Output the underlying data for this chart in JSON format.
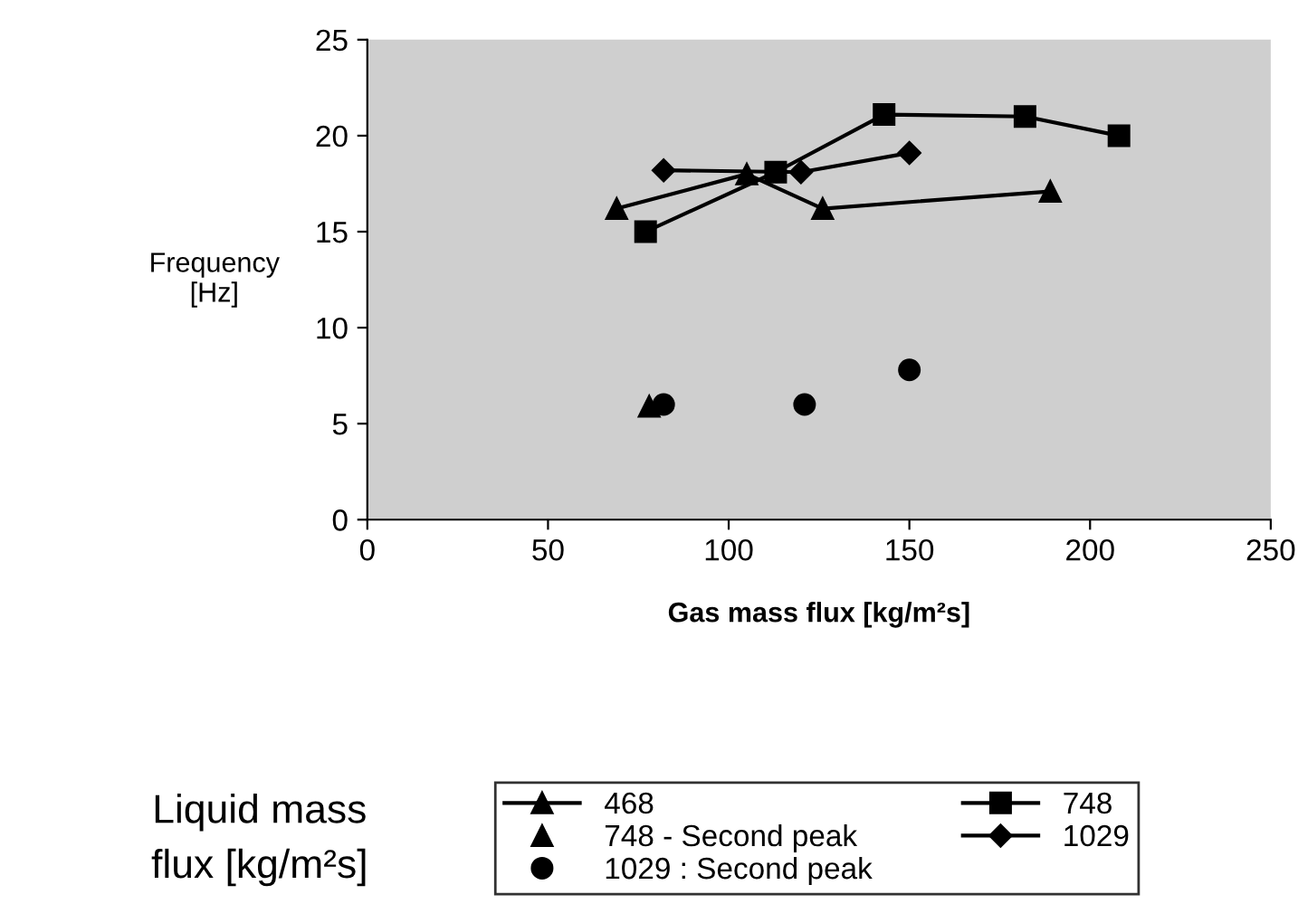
{
  "chart_data": {
    "type": "line",
    "xlabel": "Gas mass flux [kg/m²s]",
    "ylabel": "Frequency\n[Hz]",
    "legend_title": "Liquid mass\nflux [kg/m²s]",
    "xlim": [
      0,
      250
    ],
    "xticks": [
      0,
      50,
      100,
      150,
      200,
      250
    ],
    "ylim": [
      0,
      25
    ],
    "yticks": [
      0,
      5,
      10,
      15,
      20,
      25
    ],
    "grid": false,
    "legend": "bottom",
    "series": [
      {
        "name": "468",
        "color": "#000000",
        "marker": "triangle",
        "x": [
          69,
          105,
          126,
          189
        ],
        "values": [
          16.2,
          18.0,
          16.2,
          17.1
        ]
      },
      {
        "name": "748 - Second peak",
        "type": "scatter",
        "color": "#000000",
        "marker": "triangle",
        "x": [
          78
        ],
        "values": [
          5.9
        ]
      },
      {
        "name": "1029 : Second peak",
        "type": "scatter",
        "color": "#000000",
        "marker": "circle",
        "x": [
          82,
          121,
          150
        ],
        "values": [
          6.0,
          6.0,
          7.8
        ]
      },
      {
        "name": "748",
        "color": "#000000",
        "marker": "square",
        "x": [
          77,
          113,
          143,
          182,
          208
        ],
        "values": [
          15.0,
          18.1,
          21.1,
          21.0,
          20.0
        ]
      },
      {
        "name": "1029",
        "color": "#000000",
        "marker": "diamond",
        "x": [
          82,
          120,
          150
        ],
        "values": [
          18.2,
          18.1,
          19.1
        ]
      }
    ]
  }
}
